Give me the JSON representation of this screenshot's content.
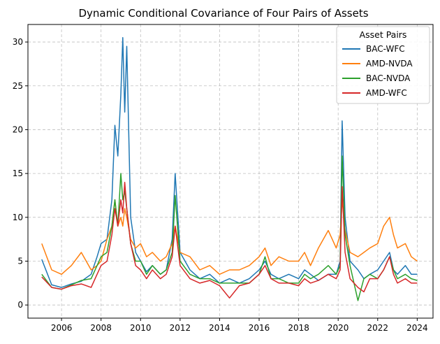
{
  "chart_data": {
    "type": "line",
    "title": "Dynamic Conditional Covariance of Four Pairs of Assets",
    "xlabel": "",
    "ylabel": "",
    "xlim": [
      2004.3,
      2024.8
    ],
    "ylim": [
      -1.5,
      32
    ],
    "x_ticks": [
      2006,
      2008,
      2010,
      2012,
      2014,
      2016,
      2018,
      2020,
      2022,
      2024
    ],
    "y_ticks": [
      0,
      5,
      10,
      15,
      20,
      25,
      30
    ],
    "grid": true,
    "legend": {
      "title": "Asset Pairs",
      "placement": "top-right"
    },
    "x": [
      2005.0,
      2005.5,
      2006.0,
      2006.5,
      2007.0,
      2007.5,
      2007.8,
      2008.0,
      2008.3,
      2008.55,
      2008.7,
      2008.85,
      2009.0,
      2009.1,
      2009.2,
      2009.3,
      2009.5,
      2009.75,
      2010.0,
      2010.3,
      2010.6,
      2011.0,
      2011.3,
      2011.6,
      2011.75,
      2012.0,
      2012.5,
      2013.0,
      2013.5,
      2014.0,
      2014.5,
      2015.0,
      2015.5,
      2016.0,
      2016.3,
      2016.6,
      2017.0,
      2017.5,
      2018.0,
      2018.3,
      2018.6,
      2019.0,
      2019.5,
      2019.9,
      2020.1,
      2020.2,
      2020.35,
      2020.6,
      2021.0,
      2021.3,
      2021.6,
      2022.0,
      2022.3,
      2022.6,
      2022.8,
      2023.0,
      2023.4,
      2023.7,
      2024.0
    ],
    "series": [
      {
        "name": "BAC-WFC",
        "color": "#1f77b4",
        "values": [
          5.2,
          2.3,
          2.0,
          2.4,
          2.7,
          3.5,
          5.5,
          7.0,
          7.5,
          12.0,
          20.5,
          17.0,
          24.0,
          30.5,
          22.0,
          29.5,
          10.0,
          6.0,
          5.0,
          3.8,
          4.5,
          3.5,
          4.0,
          7.5,
          15.0,
          6.0,
          4.0,
          3.0,
          3.5,
          2.5,
          3.0,
          2.5,
          3.0,
          4.0,
          5.0,
          3.5,
          3.0,
          3.5,
          3.0,
          4.0,
          3.5,
          2.8,
          3.5,
          3.5,
          5.0,
          21.0,
          10.0,
          5.0,
          4.0,
          3.0,
          3.5,
          4.0,
          5.0,
          6.0,
          4.0,
          3.5,
          4.5,
          3.5,
          3.5
        ]
      },
      {
        "name": "AMD-NVDA",
        "color": "#ff7f0e",
        "values": [
          7.0,
          4.0,
          3.5,
          4.5,
          6.0,
          4.0,
          4.5,
          5.0,
          7.5,
          9.0,
          12.0,
          9.0,
          10.0,
          9.0,
          11.0,
          10.0,
          7.5,
          6.5,
          7.0,
          5.5,
          6.0,
          5.0,
          5.5,
          7.0,
          9.0,
          6.0,
          5.5,
          4.0,
          4.5,
          3.5,
          4.0,
          4.0,
          4.5,
          5.5,
          6.5,
          4.5,
          5.5,
          5.0,
          5.0,
          6.0,
          4.5,
          6.5,
          8.5,
          6.5,
          8.0,
          12.0,
          8.5,
          6.0,
          5.5,
          6.0,
          6.5,
          7.0,
          9.0,
          10.0,
          8.0,
          6.5,
          7.0,
          5.5,
          5.0
        ]
      },
      {
        "name": "BAC-NVDA",
        "color": "#2ca02c",
        "values": [
          3.5,
          2.0,
          1.8,
          2.3,
          2.8,
          3.0,
          4.5,
          5.5,
          6.0,
          9.0,
          12.0,
          9.0,
          15.0,
          12.0,
          13.0,
          11.0,
          7.0,
          5.0,
          5.0,
          3.5,
          4.5,
          3.5,
          4.0,
          6.0,
          12.5,
          5.0,
          3.5,
          3.0,
          3.0,
          2.5,
          2.5,
          2.5,
          2.5,
          3.5,
          5.5,
          3.0,
          3.0,
          2.5,
          2.5,
          3.5,
          3.0,
          3.5,
          4.5,
          3.5,
          4.5,
          17.0,
          8.0,
          4.5,
          0.5,
          3.0,
          3.5,
          3.0,
          4.0,
          5.5,
          4.0,
          3.0,
          3.5,
          3.0,
          2.8
        ]
      },
      {
        "name": "AMD-WFC",
        "color": "#d62728",
        "values": [
          3.2,
          2.0,
          1.8,
          2.2,
          2.4,
          2.0,
          3.5,
          4.5,
          5.0,
          8.0,
          11.0,
          9.0,
          12.0,
          10.5,
          14.0,
          11.0,
          7.0,
          4.5,
          4.0,
          3.0,
          4.0,
          3.0,
          3.5,
          5.5,
          9.0,
          4.5,
          3.0,
          2.5,
          2.8,
          2.2,
          0.8,
          2.2,
          2.5,
          3.5,
          4.5,
          3.0,
          2.5,
          2.5,
          2.2,
          3.0,
          2.5,
          2.8,
          3.5,
          3.0,
          4.0,
          13.5,
          6.0,
          3.0,
          2.0,
          1.5,
          3.0,
          3.0,
          4.0,
          5.5,
          3.5,
          2.5,
          3.0,
          2.5,
          2.5
        ]
      }
    ]
  }
}
